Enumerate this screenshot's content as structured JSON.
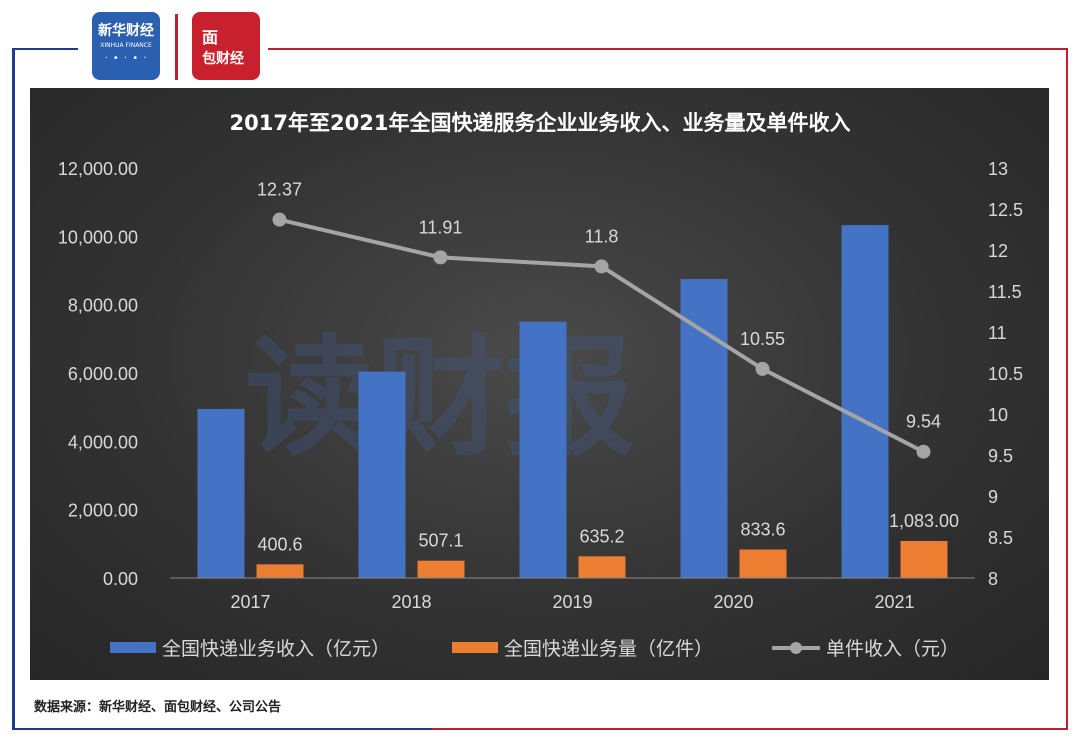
{
  "logos": {
    "xinhua": {
      "cn": "新华财经",
      "en": "XINHUA FINANCE"
    },
    "mianbao": {
      "line1": "面",
      "line2": "包财经"
    }
  },
  "watermark": "读财报",
  "source_note": "数据来源：新华财经、面包财经、公司公告",
  "colors": {
    "revenue": "#4472c4",
    "volume": "#ed7d31",
    "unit": "#a5a5a5",
    "chart_bg": "#333333",
    "text": "#d9d9d9"
  },
  "chart_data": {
    "type": "bar",
    "title": "2017年至2021年全国快递服务企业业务收入、业务量及单件收入",
    "categories": [
      "2017",
      "2018",
      "2019",
      "2020",
      "2021"
    ],
    "series": [
      {
        "name": "全国快递业务收入（亿元）",
        "type": "bar",
        "axis": "left",
        "values": [
          4950,
          6040,
          7500,
          8750,
          10330
        ],
        "labels": [
          "",
          "",
          "",
          "",
          ""
        ]
      },
      {
        "name": "全国快递业务量（亿件）",
        "type": "bar",
        "axis": "left",
        "values": [
          400.6,
          507.1,
          635.2,
          833.6,
          1083.0
        ],
        "labels": [
          "400.6",
          "507.1",
          "635.2",
          "833.6",
          "1,083.00"
        ]
      },
      {
        "name": "单件收入（元）",
        "type": "line",
        "axis": "right",
        "values": [
          12.37,
          11.91,
          11.8,
          10.55,
          9.54
        ],
        "labels": [
          "12.37",
          "11.91",
          "11.8",
          "10.55",
          "9.54"
        ]
      }
    ],
    "y_left": {
      "min": 0,
      "max": 12000,
      "ticks": [
        "0.00",
        "2,000.00",
        "4,000.00",
        "6,000.00",
        "8,000.00",
        "10,000.00",
        "12,000.00"
      ]
    },
    "y_right": {
      "min": 8,
      "max": 13,
      "ticks": [
        "8",
        "8.5",
        "9",
        "9.5",
        "10",
        "10.5",
        "11",
        "11.5",
        "12",
        "12.5",
        "13"
      ]
    },
    "legend_position": "bottom",
    "grid": false
  }
}
